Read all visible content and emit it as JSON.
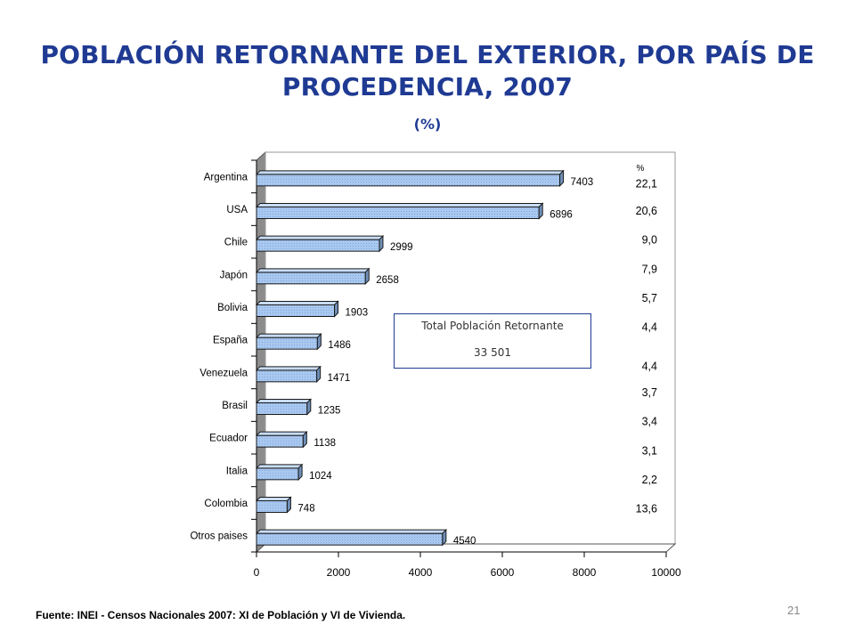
{
  "header": {
    "title_line1": "POBLACIÓN RETORNANTE DEL EXTERIOR, POR PAÍS DE",
    "title_line2": "PROCEDENCIA, 2007",
    "subtitle": "(%)"
  },
  "chart_data": {
    "type": "bar",
    "orientation": "horizontal",
    "title": "POBLACIÓN RETORNANTE DEL EXTERIOR, POR PAÍS DE PROCEDENCIA, 2007",
    "categories": [
      "Argentina",
      "USA",
      "Chile",
      "Japón",
      "Bolivia",
      "España",
      "Venezuela",
      "Brasil",
      "Ecuador",
      "Italia",
      "Colombia",
      "Otros paises"
    ],
    "values": [
      7403,
      6896,
      2999,
      2658,
      1903,
      1486,
      1471,
      1235,
      1138,
      1024,
      748,
      4540
    ],
    "value_labels": [
      "7403",
      "6896",
      "2999",
      "2658",
      "1903",
      "1486",
      "1471",
      "1235",
      "1138",
      "1024",
      "748",
      "4540"
    ],
    "percent_header": "%",
    "percents": [
      "22,1",
      "20,6",
      "9,0",
      "7,9",
      "5,7",
      "4,4",
      "4,4",
      "3,7",
      "3,4",
      "3,1",
      "2,2",
      "13,6"
    ],
    "xlim": [
      0,
      10000
    ],
    "xticks": [
      0,
      2000,
      4000,
      6000,
      8000,
      10000
    ],
    "xtick_labels": [
      "0",
      "2000",
      "4000",
      "6000",
      "8000",
      "10000"
    ],
    "bar_color": "#a9c8f0",
    "grid": false
  },
  "total_box": {
    "label": "Total Población Retornante",
    "value": "33 501"
  },
  "footer": {
    "source": "Fuente: INEI - Censos Nacionales 2007: XI de Población y VI de Vivienda.",
    "page_number": "21"
  }
}
